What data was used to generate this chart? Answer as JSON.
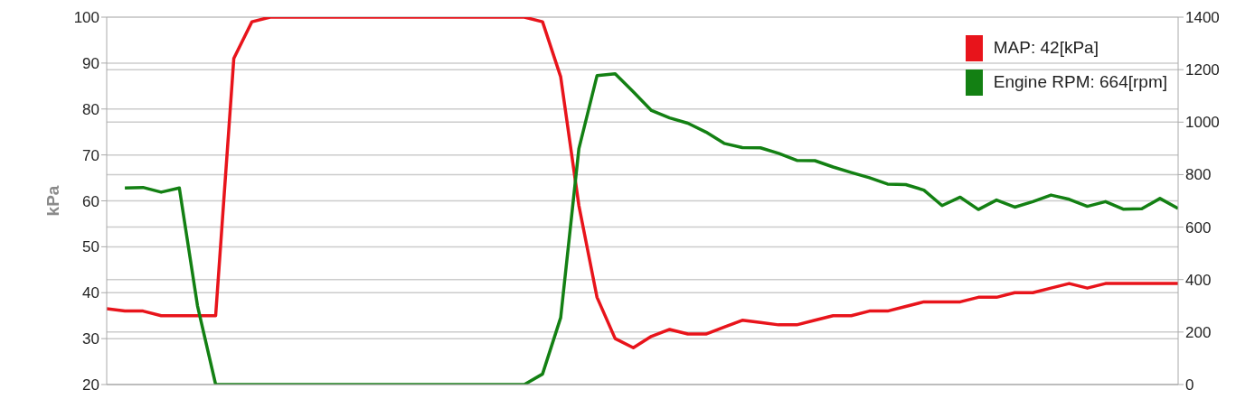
{
  "chart_data": {
    "type": "line",
    "ylabel": "kPa",
    "categories": [
      null,
      null,
      null,
      null,
      null,
      null,
      null,
      null,
      null,
      null,
      null,
      null,
      null,
      null,
      null,
      null,
      null,
      null,
      null,
      null,
      null,
      null,
      null,
      null,
      null,
      null,
      null,
      null,
      null,
      null,
      null,
      null,
      null,
      null,
      null,
      null,
      null,
      null,
      null,
      null,
      null,
      null,
      null,
      null,
      null,
      null,
      null,
      null,
      null,
      null,
      null,
      null,
      null,
      null,
      null,
      null,
      null,
      null,
      null,
      null
    ],
    "series": [
      {
        "name": "MAP: 42[kPa]",
        "color": "#e8141b",
        "values": [
          36.5,
          36,
          36,
          35,
          35,
          35,
          35,
          91,
          99,
          100,
          100,
          100,
          100,
          100,
          100,
          100,
          100,
          100,
          100,
          100,
          100,
          100,
          100,
          100,
          99,
          87,
          59,
          39,
          30,
          28,
          30.5,
          32,
          31,
          31,
          32.5,
          34,
          33.5,
          33,
          33,
          34,
          35,
          35,
          36,
          36,
          37,
          38,
          38,
          38,
          39,
          39,
          40,
          40,
          41,
          42,
          41,
          42,
          42,
          42,
          42,
          42
        ]
      },
      {
        "name": "Engine RPM: 664[rpm]",
        "color": "#138013",
        "axis": "y2",
        "values": [
          null,
          749,
          751,
          733,
          749,
          300,
          0,
          0,
          0,
          0,
          0,
          0,
          0,
          0,
          0,
          0,
          0,
          0,
          0,
          0,
          0,
          0,
          0,
          0,
          40,
          255,
          898,
          1177,
          1184,
          1115,
          1044,
          1016,
          996,
          962,
          919,
          903,
          902,
          881,
          854,
          853,
          829,
          808,
          788,
          764,
          762,
          741,
          682,
          714,
          667,
          703,
          676,
          697,
          722,
          706,
          679,
          697,
          668,
          670,
          709,
          671
        ]
      }
    ],
    "ylim": [
      20,
      100
    ],
    "yticks": [
      20,
      30,
      40,
      50,
      60,
      70,
      80,
      90,
      100
    ],
    "y2lim": [
      0,
      1400
    ],
    "y2ticks": [
      0,
      200,
      400,
      600,
      800,
      1000,
      1200,
      1400
    ],
    "grid": "y",
    "legend": "top right",
    "marker": "none",
    "line_style": "solid"
  }
}
